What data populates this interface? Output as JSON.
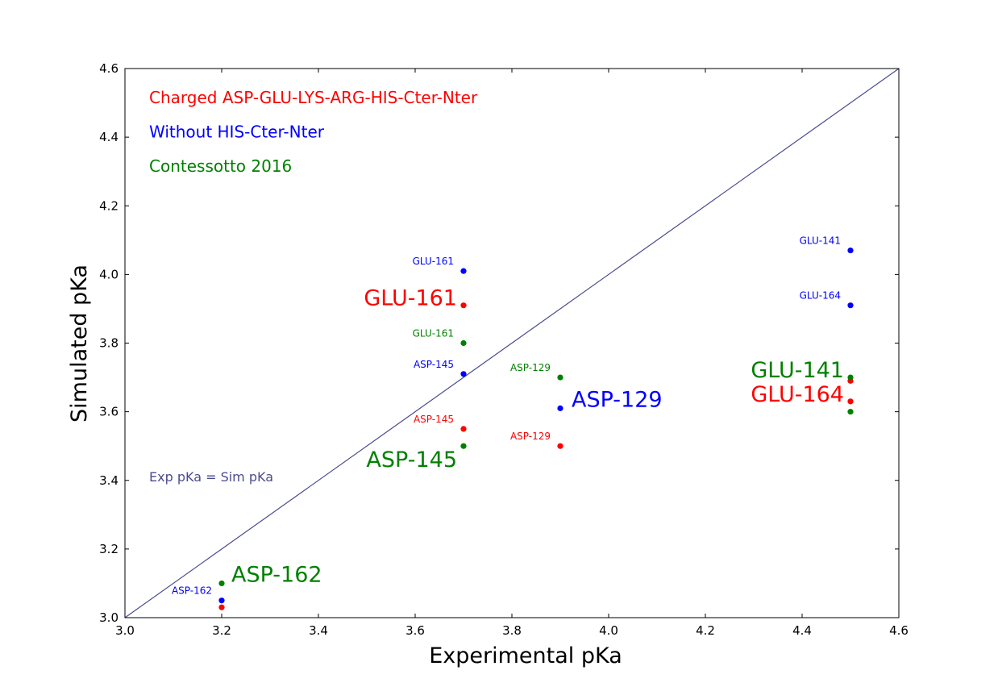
{
  "chart_data": {
    "type": "scatter",
    "xlabel": "Experimental pKa",
    "ylabel": "Simulated pKa",
    "xlim": [
      3.0,
      4.6
    ],
    "ylim": [
      3.0,
      4.6
    ],
    "xticks": [
      "3.0",
      "3.2",
      "3.4",
      "3.6",
      "3.8",
      "4.0",
      "4.2",
      "4.4",
      "4.6"
    ],
    "yticks": [
      "3.0",
      "3.2",
      "3.4",
      "3.6",
      "3.8",
      "4.0",
      "4.2",
      "4.4",
      "4.6"
    ],
    "grid": false,
    "colors": {
      "red": "#ff0000",
      "blue": "#0000ff",
      "green": "#008000",
      "diagonal": "#4b4b8f"
    },
    "legend": [
      {
        "text": "Charged ASP-GLU-LYS-ARG-HIS-Cter-Nter",
        "color": "red"
      },
      {
        "text": "Without HIS-Cter-Nter",
        "color": "blue"
      },
      {
        "text": "Contessotto 2016",
        "color": "green"
      }
    ],
    "diagonal_label": "Exp pKa = Sim pKa",
    "series": [
      {
        "color": "red",
        "points": [
          {
            "label": "ASP-162",
            "x": 3.2,
            "y": 3.03
          },
          {
            "label": "ASP-145",
            "x": 3.7,
            "y": 3.55
          },
          {
            "label": "GLU-161",
            "x": 3.7,
            "y": 3.91
          },
          {
            "label": "ASP-129",
            "x": 3.9,
            "y": 3.5
          },
          {
            "label": "GLU-141",
            "x": 4.5,
            "y": 3.69
          },
          {
            "label": "GLU-164",
            "x": 4.5,
            "y": 3.63
          }
        ]
      },
      {
        "color": "blue",
        "points": [
          {
            "label": "ASP-162",
            "x": 3.2,
            "y": 3.05
          },
          {
            "label": "ASP-145",
            "x": 3.7,
            "y": 3.71
          },
          {
            "label": "GLU-161",
            "x": 3.7,
            "y": 4.01
          },
          {
            "label": "ASP-129",
            "x": 3.9,
            "y": 3.61
          },
          {
            "label": "GLU-141",
            "x": 4.5,
            "y": 4.07
          },
          {
            "label": "GLU-164",
            "x": 4.5,
            "y": 3.91
          }
        ]
      },
      {
        "color": "green",
        "points": [
          {
            "label": "ASP-162",
            "x": 3.2,
            "y": 3.1
          },
          {
            "label": "ASP-145",
            "x": 3.7,
            "y": 3.5
          },
          {
            "label": "GLU-161",
            "x": 3.7,
            "y": 3.8
          },
          {
            "label": "ASP-129",
            "x": 3.9,
            "y": 3.7
          },
          {
            "label": "GLU-141",
            "x": 4.5,
            "y": 3.7
          },
          {
            "label": "GLU-164",
            "x": 4.5,
            "y": 3.6
          }
        ]
      }
    ],
    "annotations": [
      {
        "text": "GLU-161",
        "color": "blue",
        "size": "small",
        "x": 3.7,
        "y": 4.01
      },
      {
        "text": "GLU-161",
        "color": "red",
        "size": "large",
        "x": 3.7,
        "y": 3.91
      },
      {
        "text": "GLU-161",
        "color": "green",
        "size": "small",
        "x": 3.7,
        "y": 3.8
      },
      {
        "text": "ASP-145",
        "color": "blue",
        "size": "small",
        "x": 3.7,
        "y": 3.71
      },
      {
        "text": "ASP-145",
        "color": "red",
        "size": "small",
        "x": 3.7,
        "y": 3.55
      },
      {
        "text": "ASP-145",
        "color": "green",
        "size": "large",
        "x": 3.7,
        "y": 3.5
      },
      {
        "text": "ASP-129",
        "color": "green",
        "size": "small",
        "x": 3.9,
        "y": 3.7
      },
      {
        "text": "ASP-129",
        "color": "blue",
        "size": "large",
        "x": 3.9,
        "y": 3.61
      },
      {
        "text": "ASP-129",
        "color": "red",
        "size": "small",
        "x": 3.9,
        "y": 3.5
      },
      {
        "text": "GLU-141",
        "color": "blue",
        "size": "small",
        "x": 4.5,
        "y": 4.07
      },
      {
        "text": "GLU-164",
        "color": "blue",
        "size": "small",
        "x": 4.5,
        "y": 3.91
      },
      {
        "text": "GLU-141",
        "color": "green",
        "size": "large",
        "x": 4.5,
        "y": 3.7
      },
      {
        "text": "GLU-164",
        "color": "red",
        "size": "large",
        "x": 4.5,
        "y": 3.63
      },
      {
        "text": "ASP-162",
        "color": "green",
        "size": "large",
        "x": 3.2,
        "y": 3.1
      },
      {
        "text": "ASP-162",
        "color": "blue",
        "size": "small",
        "x": 3.2,
        "y": 3.05
      }
    ]
  }
}
